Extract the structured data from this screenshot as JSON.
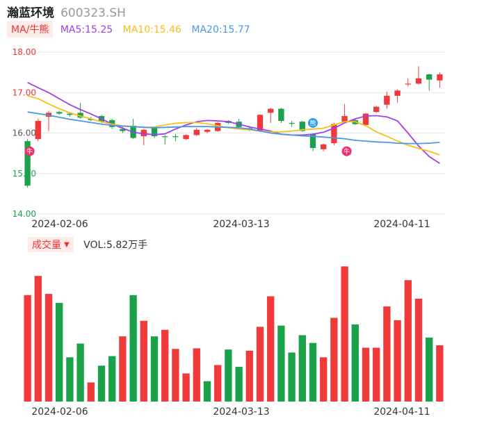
{
  "header": {
    "name": "瀚蓝环境",
    "code": "600323.SH"
  },
  "ma_bar": {
    "toggle": "MA/牛熊",
    "ma5": "MA5:15.25",
    "ma10": "MA10:15.46",
    "ma20": "MA20:15.77"
  },
  "volume_bar": {
    "toggle": "成交量",
    "label": "VOL:5.82万手"
  },
  "colors": {
    "up": "#f03a3a",
    "down": "#1aa24a",
    "flat": "#1aa24a",
    "ma5": "#a040e8",
    "ma10": "#f5c01a",
    "ma20": "#4a98e6",
    "grid": "#e8e8e8"
  },
  "chart_data": [
    {
      "type": "candlestick",
      "ylim": [
        14.0,
        18.0
      ],
      "yticks": [
        "18.00",
        "17.00",
        "16.00",
        "15.00",
        "14.00"
      ],
      "x_labels": [
        "2024-02-06",
        "2024-03-13",
        "2024-04-11"
      ],
      "markers": [
        {
          "label": "牛",
          "index": 0
        },
        {
          "label": "熊",
          "index": 27
        },
        {
          "label": "牛",
          "index": 30
        }
      ],
      "candles": [
        {
          "o": 15.8,
          "c": 14.7,
          "h": 15.85,
          "l": 14.65
        },
        {
          "o": 15.85,
          "c": 16.3,
          "h": 16.35,
          "l": 15.8
        },
        {
          "o": 16.4,
          "c": 16.5,
          "h": 16.55,
          "l": 16.05
        },
        {
          "o": 16.52,
          "c": 16.48,
          "h": 16.55,
          "l": 16.45
        },
        {
          "o": 16.48,
          "c": 16.45,
          "h": 16.5,
          "l": 16.4
        },
        {
          "o": 16.5,
          "c": 16.38,
          "h": 16.75,
          "l": 16.35
        },
        {
          "o": 16.35,
          "c": 16.32,
          "h": 16.4,
          "l": 16.3
        },
        {
          "o": 16.42,
          "c": 16.28,
          "h": 16.45,
          "l": 16.25
        },
        {
          "o": 16.32,
          "c": 16.15,
          "h": 16.35,
          "l": 16.1
        },
        {
          "o": 16.1,
          "c": 16.05,
          "h": 16.15,
          "l": 16.0
        },
        {
          "o": 16.18,
          "c": 15.88,
          "h": 16.35,
          "l": 15.85
        },
        {
          "o": 15.92,
          "c": 16.08,
          "h": 16.1,
          "l": 15.7
        },
        {
          "o": 16.12,
          "c": 15.92,
          "h": 16.15,
          "l": 15.88
        },
        {
          "o": 15.92,
          "c": 15.92,
          "h": 15.95,
          "l": 15.72
        },
        {
          "o": 15.92,
          "c": 15.92,
          "h": 15.98,
          "l": 15.8
        },
        {
          "o": 15.85,
          "c": 15.95,
          "h": 15.97,
          "l": 15.83
        },
        {
          "o": 15.95,
          "c": 16.08,
          "h": 16.12,
          "l": 15.93
        },
        {
          "o": 16.03,
          "c": 16.08,
          "h": 16.1,
          "l": 15.99
        },
        {
          "o": 16.05,
          "c": 16.25,
          "h": 16.27,
          "l": 16.03
        },
        {
          "o": 16.3,
          "c": 16.25,
          "h": 16.32,
          "l": 16.22
        },
        {
          "o": 16.28,
          "c": 16.15,
          "h": 16.35,
          "l": 16.12
        },
        {
          "o": 16.12,
          "c": 16.08,
          "h": 16.18,
          "l": 16.05
        },
        {
          "o": 16.05,
          "c": 16.45,
          "h": 16.47,
          "l": 16.03
        },
        {
          "o": 16.5,
          "c": 16.6,
          "h": 16.62,
          "l": 16.25
        },
        {
          "o": 16.6,
          "c": 16.3,
          "h": 16.62,
          "l": 16.25
        },
        {
          "o": 16.25,
          "c": 16.25,
          "h": 16.3,
          "l": 16.15
        },
        {
          "o": 16.28,
          "c": 16.05,
          "h": 16.3,
          "l": 16.03
        },
        {
          "o": 15.98,
          "c": 15.63,
          "h": 16.0,
          "l": 15.55
        },
        {
          "o": 15.6,
          "c": 15.72,
          "h": 15.74,
          "l": 15.55
        },
        {
          "o": 15.75,
          "c": 16.22,
          "h": 16.25,
          "l": 15.7
        },
        {
          "o": 16.28,
          "c": 16.42,
          "h": 16.72,
          "l": 16.25
        },
        {
          "o": 16.32,
          "c": 16.22,
          "h": 16.35,
          "l": 16.2
        },
        {
          "o": 16.2,
          "c": 16.48,
          "h": 16.5,
          "l": 16.18
        },
        {
          "o": 16.52,
          "c": 16.65,
          "h": 16.67,
          "l": 16.5
        },
        {
          "o": 16.7,
          "c": 16.92,
          "h": 17.02,
          "l": 16.6
        },
        {
          "o": 16.92,
          "c": 17.05,
          "h": 17.08,
          "l": 16.75
        },
        {
          "o": 17.2,
          "c": 17.22,
          "h": 17.35,
          "l": 17.15
        },
        {
          "o": 17.22,
          "c": 17.35,
          "h": 17.65,
          "l": 17.2
        },
        {
          "o": 17.45,
          "c": 17.32,
          "h": 17.47,
          "l": 17.05
        },
        {
          "o": 17.3,
          "c": 17.45,
          "h": 17.5,
          "l": 17.12
        }
      ],
      "ma5": [
        17.25,
        17.12,
        17.0,
        16.85,
        16.7,
        16.58,
        16.47,
        16.35,
        16.22,
        16.12,
        16.02,
        15.98,
        15.96,
        15.98,
        16.1,
        16.2,
        16.28,
        16.31,
        16.3,
        16.28,
        16.22,
        16.15,
        16.1,
        16.05,
        15.97,
        15.95,
        15.95,
        15.97,
        16.02,
        16.12,
        16.25,
        16.35,
        16.42,
        16.43,
        16.4,
        16.3,
        16.0,
        15.68,
        15.42,
        15.25
      ],
      "ma10": [
        16.92,
        16.85,
        16.72,
        16.6,
        16.5,
        16.42,
        16.35,
        16.28,
        16.22,
        16.18,
        16.16,
        16.14,
        16.15,
        16.2,
        16.24,
        16.26,
        16.26,
        16.23,
        16.18,
        16.13,
        16.1,
        16.08,
        16.05,
        16.03,
        16.03,
        16.05,
        16.08,
        16.1,
        16.12,
        16.2,
        16.28,
        16.28,
        16.18,
        16.03,
        15.92,
        15.8,
        15.7,
        15.62,
        15.55,
        15.46
      ],
      "ma20": [
        16.52,
        16.48,
        16.44,
        16.39,
        16.34,
        16.3,
        16.26,
        16.22,
        16.19,
        16.17,
        16.16,
        16.14,
        16.13,
        16.14,
        16.15,
        16.16,
        16.16,
        16.16,
        16.15,
        16.14,
        16.13,
        16.1,
        16.05,
        16.0,
        15.97,
        15.95,
        15.93,
        15.92,
        15.9,
        15.88,
        15.86,
        15.82,
        15.8,
        15.78,
        15.77,
        15.75,
        15.74,
        15.74,
        15.75,
        15.77
      ]
    },
    {
      "type": "bar",
      "series_name": "成交量",
      "values": [
        178,
        210,
        180,
        165,
        74,
        97,
        32,
        60,
        76,
        109,
        178,
        135,
        109,
        120,
        88,
        47,
        89,
        34,
        61,
        87,
        58,
        85,
        125,
        176,
        127,
        82,
        111,
        98,
        74,
        140,
        226,
        129,
        90,
        90,
        159,
        136,
        203,
        172,
        107,
        94
      ],
      "directions": [
        "up",
        "up",
        "up",
        "down",
        "down",
        "down",
        "up",
        "down",
        "down",
        "up",
        "down",
        "up",
        "down",
        "up",
        "up",
        "up",
        "up",
        "down",
        "up",
        "down",
        "down",
        "up",
        "up",
        "up",
        "down",
        "down",
        "down",
        "down",
        "up",
        "up",
        "up",
        "down",
        "up",
        "up",
        "up",
        "up",
        "up",
        "up",
        "down",
        "up"
      ]
    }
  ]
}
